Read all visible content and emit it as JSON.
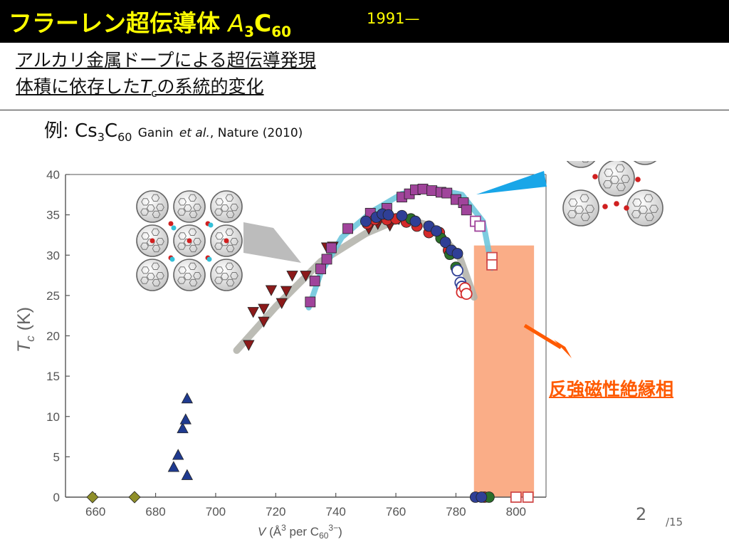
{
  "title": {
    "main": "フラーレン超伝導体",
    "formula_a": "A",
    "formula_a_sub": "3",
    "formula_c": "C",
    "formula_c_sub": "60",
    "years": "1991—"
  },
  "topics": {
    "line1": "アルカリ金属ドープによる超伝導発現",
    "line2_pre": "体積に依存した",
    "line2_t": "T",
    "line2_t_sub": "c",
    "line2_post": "の系統的変化"
  },
  "example": {
    "label": "例:",
    "cs": "Cs",
    "cs_sub": "3",
    "c": "C",
    "c_sub": "60",
    "authors": "Ganin",
    "etal": "et al.",
    "journal": ", Nature (2010)"
  },
  "phase_label": "反強磁性絶縁相",
  "page": {
    "current": "2",
    "total": "/15"
  },
  "colors": {
    "title_bar": "#000000",
    "title_text": "#ffff00",
    "afm_region": "#f9a47a",
    "afm_label": "#ff5a00",
    "gray_curve": "#b0b0a8",
    "cyan_curve": "#6fc6dd",
    "cyan_arrow": "#19a6e8",
    "gray_arrow": "#bcbcbc",
    "orange_arrow": "#ff5a00"
  },
  "chart_data": {
    "type": "scatter",
    "xlabel": "V (Å³ per C₆₀³⁻)",
    "ylabel": "Tc (K)",
    "xlim": [
      650,
      810
    ],
    "ylim": [
      0,
      40
    ],
    "x_ticks": [
      "660",
      "680",
      "700",
      "720",
      "740",
      "760",
      "780",
      "800"
    ],
    "y_ticks": [
      "0",
      "5",
      "10",
      "15",
      "20",
      "25",
      "30",
      "35",
      "40"
    ],
    "afm_region_x": [
      786,
      806
    ],
    "series": [
      {
        "marker": "diamond",
        "color": "#8f8f2a",
        "filled": true,
        "points": [
          [
            659,
            0
          ],
          [
            673,
            0
          ]
        ]
      },
      {
        "marker": "triangle-up",
        "color": "#1f3a8f",
        "filled": true,
        "points": [
          [
            686,
            3.7
          ],
          [
            687.5,
            5.2
          ],
          [
            689,
            8.5
          ],
          [
            690,
            9.6
          ],
          [
            690.5,
            12.2
          ],
          [
            690.5,
            2.7
          ]
        ]
      },
      {
        "marker": "triangle-down",
        "color": "#8b1a1a",
        "filled": true,
        "points": [
          [
            711,
            18.9
          ],
          [
            712.5,
            23
          ],
          [
            716,
            23.4
          ],
          [
            716,
            21.8
          ],
          [
            718.5,
            25.7
          ],
          [
            722,
            24.1
          ],
          [
            723.5,
            25.6
          ],
          [
            725.5,
            27.5
          ],
          [
            730,
            27.5
          ],
          [
            737,
            31
          ],
          [
            739,
            31.1
          ],
          [
            751,
            33.3
          ],
          [
            754,
            33.9
          ],
          [
            758,
            33.7
          ],
          [
            761,
            34.5
          ]
        ]
      },
      {
        "marker": "square",
        "color": "#a0449b",
        "filled": true,
        "points": [
          [
            731.5,
            24.2
          ],
          [
            733,
            26.8
          ],
          [
            735,
            28.3
          ],
          [
            737,
            29.5
          ],
          [
            738.5,
            30.9
          ],
          [
            744,
            33.3
          ],
          [
            751.5,
            35.2
          ],
          [
            757,
            35.8
          ],
          [
            762,
            37.2
          ],
          [
            764.5,
            37.6
          ],
          [
            766.5,
            38.1
          ],
          [
            769,
            38.2
          ],
          [
            772,
            38
          ],
          [
            775,
            37.8
          ],
          [
            777,
            37.7
          ],
          [
            780,
            36.9
          ],
          [
            782.5,
            36.5
          ],
          [
            783.5,
            35.6
          ]
        ]
      },
      {
        "marker": "square",
        "color": "#a0449b",
        "filled": false,
        "points": [
          [
            786.5,
            34.2
          ],
          [
            788,
            33.6
          ]
        ]
      },
      {
        "marker": "square",
        "color": "#d04a4a",
        "filled": false,
        "points": [
          [
            792,
            29.7
          ],
          [
            792,
            28.8
          ],
          [
            800,
            0
          ],
          [
            804,
            0
          ]
        ]
      },
      {
        "marker": "circle",
        "color": "#d42a2a",
        "filled": true,
        "points": [
          [
            750.5,
            33.9
          ],
          [
            753,
            34.4
          ],
          [
            757,
            34.4
          ],
          [
            760,
            34.5
          ],
          [
            763.5,
            34.1
          ],
          [
            767,
            33.6
          ],
          [
            771,
            32.8
          ],
          [
            774.5,
            32.8
          ],
          [
            777.5,
            30.6
          ],
          [
            789.5,
            0
          ]
        ]
      },
      {
        "marker": "circle",
        "color": "#2a6e2a",
        "filled": true,
        "points": [
          [
            765,
            34.5
          ],
          [
            775,
            32.1
          ],
          [
            778,
            30.1
          ],
          [
            780,
            28.5
          ],
          [
            791,
            0
          ]
        ]
      },
      {
        "marker": "circle",
        "color": "#2f3f96",
        "filled": true,
        "points": [
          [
            750,
            34.2
          ],
          [
            753.5,
            34.7
          ],
          [
            755.5,
            35.1
          ],
          [
            757.5,
            35
          ],
          [
            762,
            34.9
          ],
          [
            766.5,
            34.2
          ],
          [
            771,
            33.6
          ],
          [
            773.5,
            33
          ],
          [
            776.5,
            31.6
          ],
          [
            778.5,
            30.6
          ],
          [
            780.5,
            30.2
          ],
          [
            786.5,
            0
          ],
          [
            788.5,
            0
          ]
        ]
      },
      {
        "marker": "circle",
        "color": "#2f3f96",
        "filled": false,
        "points": [
          [
            780.5,
            28.1
          ],
          [
            781.5,
            26.6
          ],
          [
            782,
            26.1
          ]
        ]
      },
      {
        "marker": "circle",
        "color": "#d42a2a",
        "filled": false,
        "points": [
          [
            782,
            25.4
          ],
          [
            783,
            25.9
          ],
          [
            783.5,
            25.2
          ]
        ]
      }
    ]
  }
}
